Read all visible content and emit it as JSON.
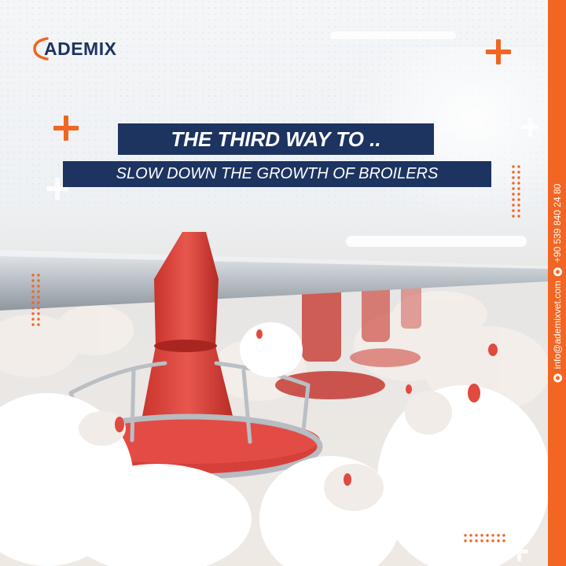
{
  "brand": {
    "logo_text": "ADEMIX",
    "accent_color": "#f26522",
    "navy_color": "#1d3461"
  },
  "headline": {
    "line1": "THE THIRD WAY TO ..",
    "line2": "SLOW DOWN THE GROWTH OF BROILERS"
  },
  "contact": {
    "email": "info@ademixvet.com",
    "phone": "+90 539 840 24 80"
  },
  "icons": {
    "email_icon": "email-icon",
    "phone_icon": "whatsapp-icon"
  }
}
